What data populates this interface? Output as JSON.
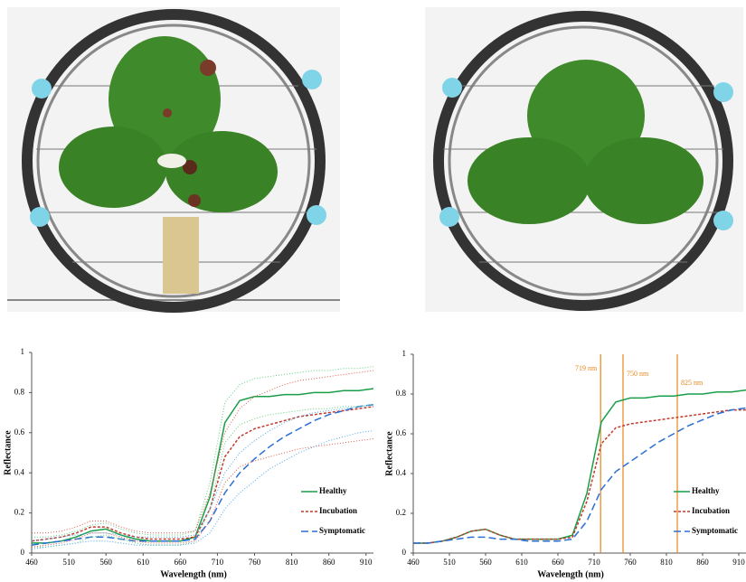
{
  "chart_data": [
    {
      "type": "line",
      "x_label": "Wavelength (nm)",
      "y_label": "Reflectance",
      "x": [
        460,
        480,
        500,
        520,
        540,
        560,
        580,
        600,
        620,
        640,
        660,
        680,
        700,
        720,
        740,
        760,
        780,
        800,
        820,
        840,
        860,
        880,
        900,
        920
      ],
      "xlim": [
        460,
        920
      ],
      "xticks": [
        460,
        510,
        560,
        610,
        660,
        710,
        760,
        810,
        860,
        910
      ],
      "ylim": [
        0,
        1
      ],
      "yticks": [
        0,
        0.2,
        0.4,
        0.6,
        0.8,
        1
      ],
      "legend": "lower right",
      "series": [
        {
          "name": "Healthy",
          "color": "#1a9e48",
          "dash": "solid",
          "values": [
            0.05,
            0.05,
            0.06,
            0.08,
            0.11,
            0.12,
            0.09,
            0.07,
            0.06,
            0.06,
            0.06,
            0.08,
            0.28,
            0.65,
            0.76,
            0.78,
            0.78,
            0.79,
            0.79,
            0.8,
            0.8,
            0.81,
            0.81,
            0.82
          ]
        },
        {
          "name": "Incubation",
          "color": "#c0392b",
          "dash": "dashed",
          "values": [
            0.06,
            0.07,
            0.08,
            0.1,
            0.13,
            0.13,
            0.1,
            0.08,
            0.07,
            0.07,
            0.07,
            0.08,
            0.22,
            0.48,
            0.58,
            0.62,
            0.64,
            0.66,
            0.68,
            0.69,
            0.7,
            0.71,
            0.72,
            0.73
          ]
        },
        {
          "name": "Symptomatic",
          "color": "#2a6fd6",
          "dash": "longdash",
          "values": [
            0.04,
            0.05,
            0.06,
            0.07,
            0.08,
            0.08,
            0.07,
            0.06,
            0.06,
            0.06,
            0.06,
            0.07,
            0.16,
            0.3,
            0.4,
            0.47,
            0.53,
            0.58,
            0.62,
            0.66,
            0.69,
            0.71,
            0.73,
            0.74
          ]
        },
        {
          "color": "#5fd17f",
          "dash": "dotted",
          "values": [
            0.08,
            0.08,
            0.09,
            0.11,
            0.14,
            0.15,
            0.12,
            0.1,
            0.09,
            0.09,
            0.09,
            0.11,
            0.35,
            0.75,
            0.84,
            0.87,
            0.88,
            0.89,
            0.9,
            0.91,
            0.91,
            0.92,
            0.92,
            0.93
          ]
        },
        {
          "color": "#5fd17f",
          "dash": "dotted",
          "values": [
            0.03,
            0.03,
            0.04,
            0.05,
            0.08,
            0.09,
            0.07,
            0.05,
            0.04,
            0.04,
            0.04,
            0.06,
            0.22,
            0.55,
            0.64,
            0.67,
            0.69,
            0.7,
            0.71,
            0.72,
            0.72,
            0.73,
            0.73,
            0.74
          ]
        },
        {
          "color": "#e05a4a",
          "dash": "dotted",
          "values": [
            0.1,
            0.1,
            0.11,
            0.13,
            0.16,
            0.16,
            0.13,
            0.11,
            0.1,
            0.1,
            0.1,
            0.11,
            0.3,
            0.6,
            0.72,
            0.78,
            0.81,
            0.84,
            0.86,
            0.87,
            0.88,
            0.89,
            0.9,
            0.91
          ]
        },
        {
          "color": "#e05a4a",
          "dash": "dotted",
          "values": [
            0.03,
            0.04,
            0.05,
            0.07,
            0.1,
            0.1,
            0.08,
            0.06,
            0.05,
            0.05,
            0.05,
            0.06,
            0.16,
            0.35,
            0.43,
            0.46,
            0.48,
            0.5,
            0.52,
            0.53,
            0.54,
            0.55,
            0.56,
            0.57
          ]
        },
        {
          "color": "#4aa6e8",
          "dash": "dotted",
          "values": [
            0.06,
            0.07,
            0.08,
            0.09,
            0.1,
            0.1,
            0.09,
            0.08,
            0.08,
            0.08,
            0.08,
            0.09,
            0.22,
            0.4,
            0.5,
            0.56,
            0.61,
            0.65,
            0.68,
            0.7,
            0.71,
            0.72,
            0.73,
            0.74
          ]
        },
        {
          "color": "#4aa6e8",
          "dash": "dotted",
          "values": [
            0.02,
            0.03,
            0.04,
            0.05,
            0.06,
            0.06,
            0.05,
            0.04,
            0.04,
            0.04,
            0.04,
            0.05,
            0.1,
            0.22,
            0.3,
            0.36,
            0.42,
            0.46,
            0.5,
            0.53,
            0.56,
            0.58,
            0.6,
            0.61
          ]
        }
      ]
    },
    {
      "type": "line",
      "x_label": "Wavelength (nm)",
      "y_label": "Reflectance",
      "x": [
        460,
        480,
        500,
        520,
        540,
        560,
        580,
        600,
        620,
        640,
        660,
        680,
        700,
        720,
        740,
        760,
        780,
        800,
        820,
        840,
        860,
        880,
        900,
        920
      ],
      "xlim": [
        460,
        920
      ],
      "xticks": [
        460,
        510,
        560,
        610,
        660,
        710,
        760,
        810,
        860,
        910
      ],
      "ylim": [
        0,
        1
      ],
      "yticks": [
        0,
        0.2,
        0.4,
        0.6,
        0.8,
        1
      ],
      "legend": "lower right",
      "markers": [
        {
          "value": 719,
          "label": "719 nm"
        },
        {
          "value": 750,
          "label": "750 nm"
        },
        {
          "value": 825,
          "label": "825 nm"
        }
      ],
      "marker_color": "#e8861a",
      "series": [
        {
          "name": "Healthy",
          "color": "#1a9e48",
          "dash": "solid",
          "values": [
            0.05,
            0.05,
            0.06,
            0.08,
            0.11,
            0.12,
            0.09,
            0.07,
            0.07,
            0.07,
            0.07,
            0.09,
            0.3,
            0.66,
            0.76,
            0.78,
            0.78,
            0.79,
            0.79,
            0.8,
            0.8,
            0.81,
            0.81,
            0.82
          ]
        },
        {
          "name": "Incubation",
          "color": "#c0392b",
          "dash": "dashed",
          "values": [
            0.05,
            0.05,
            0.06,
            0.08,
            0.11,
            0.12,
            0.09,
            0.07,
            0.07,
            0.07,
            0.07,
            0.08,
            0.26,
            0.55,
            0.63,
            0.65,
            0.66,
            0.67,
            0.68,
            0.69,
            0.7,
            0.71,
            0.72,
            0.72
          ]
        },
        {
          "name": "Symptomatic",
          "color": "#2a6fd6",
          "dash": "longdash",
          "values": [
            0.05,
            0.05,
            0.06,
            0.07,
            0.08,
            0.08,
            0.07,
            0.07,
            0.06,
            0.06,
            0.06,
            0.07,
            0.16,
            0.32,
            0.41,
            0.46,
            0.51,
            0.56,
            0.6,
            0.64,
            0.67,
            0.7,
            0.72,
            0.73
          ]
        }
      ]
    }
  ]
}
